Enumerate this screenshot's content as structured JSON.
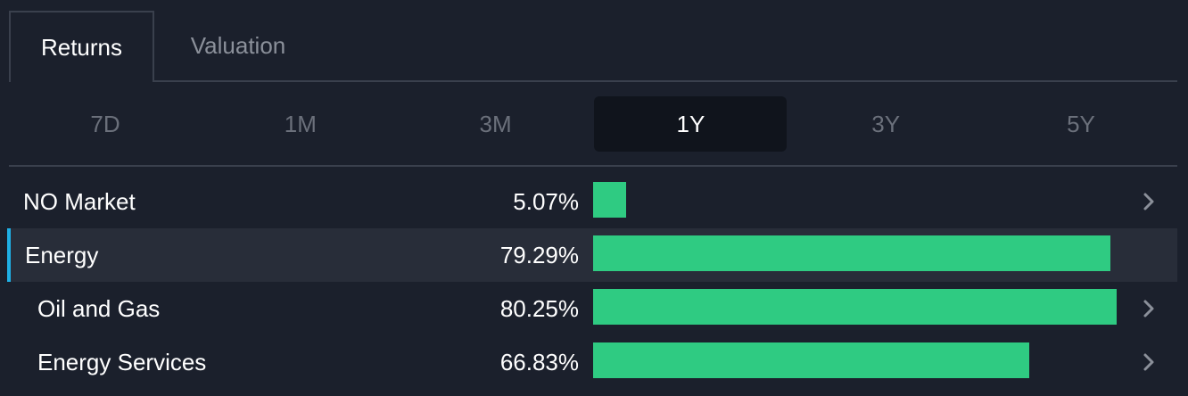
{
  "tabs": [
    {
      "label": "Returns",
      "active": true
    },
    {
      "label": "Valuation",
      "active": false
    }
  ],
  "periods": [
    {
      "label": "7D",
      "active": false
    },
    {
      "label": "1M",
      "active": false
    },
    {
      "label": "3M",
      "active": false
    },
    {
      "label": "1Y",
      "active": true
    },
    {
      "label": "3Y",
      "active": false
    },
    {
      "label": "5Y",
      "active": false
    }
  ],
  "scale_max_percent": 81.5,
  "rows": [
    {
      "label": "NO Market",
      "value_text": "5.07%",
      "value": 5.07,
      "highlight": false,
      "indent": false,
      "chevron": true
    },
    {
      "label": "Energy",
      "value_text": "79.29%",
      "value": 79.29,
      "highlight": true,
      "indent": false,
      "chevron": false
    },
    {
      "label": "Oil and Gas",
      "value_text": "80.25%",
      "value": 80.25,
      "highlight": false,
      "indent": true,
      "chevron": true
    },
    {
      "label": "Energy Services",
      "value_text": "66.83%",
      "value": 66.83,
      "highlight": false,
      "indent": true,
      "chevron": true
    }
  ],
  "colors": {
    "background": "#1b202c",
    "bar": "#2fcb82",
    "accent": "#1fb0e6",
    "highlight_row": "#282d39",
    "active_period_bg": "#10141c"
  },
  "icons": {
    "row_chevron": "chevron-right-icon"
  }
}
